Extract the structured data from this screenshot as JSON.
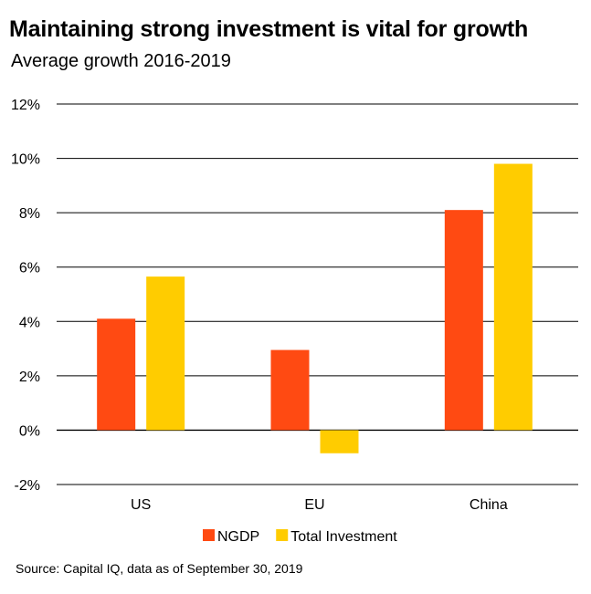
{
  "chart_data": {
    "type": "bar",
    "title": "Maintaining strong investment is vital for growth",
    "subtitle": "Average growth 2016-2019",
    "categories": [
      "US",
      "EU",
      "China"
    ],
    "series": [
      {
        "name": "NGDP",
        "color": "#FF4A12",
        "values": [
          4.1,
          2.95,
          8.1
        ]
      },
      {
        "name": "Total Investment",
        "color": "#FFCC00",
        "values": [
          5.65,
          -0.85,
          9.8
        ]
      }
    ],
    "y_ticks": [
      12,
      10,
      8,
      6,
      4,
      2,
      0,
      -2
    ],
    "y_tick_suffix": "%",
    "ylim": [
      -2,
      12
    ],
    "grid": true,
    "legend_position": "bottom-center",
    "source": "Source: Capital IQ, data as of September 30, 2019"
  }
}
